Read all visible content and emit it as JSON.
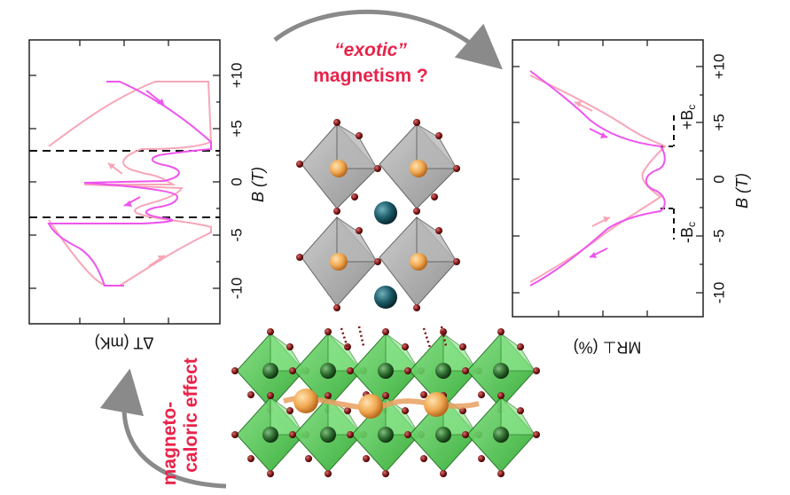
{
  "colors": {
    "accent": "#e8234a",
    "curve_dark": "#ee55ee",
    "curve_light": "#f7a6b8",
    "octa_gray": "#9a9a9a",
    "octa_green": "#33b833",
    "atom_gold": "#f0a850",
    "atom_teal": "#1a5a66",
    "atom_oxygen": "#7a1010"
  },
  "top_label": {
    "line1": "“exotic”",
    "line2": "magnetism ?"
  },
  "bottom_label": {
    "line1": "magneto-",
    "line2": "caloric effect"
  },
  "left_panel": {
    "ylabel": "ΔT (mK)",
    "b_axis_label": "B (T)",
    "b_ticks": [
      "+10",
      "+5",
      "0",
      "-5",
      "-10"
    ]
  },
  "right_panel": {
    "ylabel": "MR⊥ (%)",
    "b_axis_label": "B (T)",
    "b_ticks": [
      "+10",
      "+5",
      "0",
      "-5",
      "-10"
    ],
    "bc_plus": "+B",
    "bc_minus": "-B",
    "bc_sub": "c"
  },
  "icons": [
    "curved-arrow-icon",
    "direction-arrow-icon"
  ]
}
